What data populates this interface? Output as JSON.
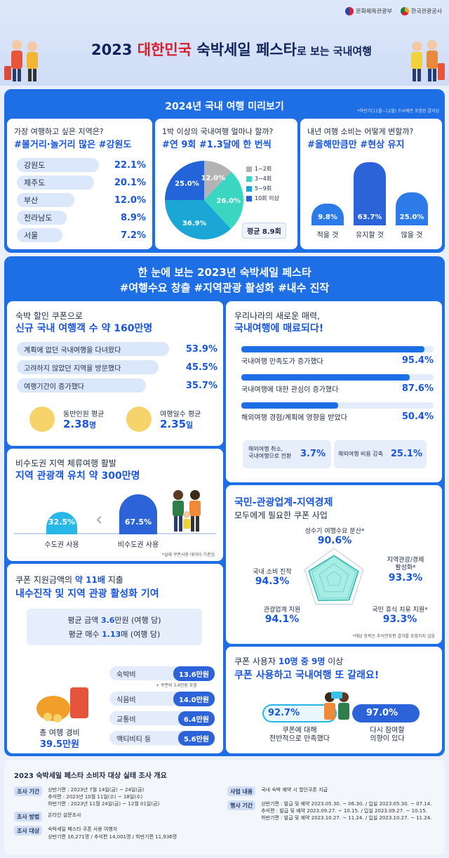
{
  "header": {
    "org1": "문화체육관광부",
    "org2": "한국관광공사",
    "title_pre": "2023 ",
    "title_red": "대한민국",
    "title_mid": " 숙박세일 페스타",
    "title_small": "로 보는 국내여행"
  },
  "preview": {
    "title": "2024년 국내 여행 미리보기",
    "note": "*하반기(11월~12월) 조사에만 포함된 결과임",
    "q1": {
      "question": "가장 여행하고 싶은 지역은?",
      "hashtag": "#볼거리·놀거리 많은 #강원도",
      "rows": [
        {
          "label": "강원도",
          "value": "22.1%"
        },
        {
          "label": "제주도",
          "value": "20.1%"
        },
        {
          "label": "부산",
          "value": "12.0%"
        },
        {
          "label": "전라남도",
          "value": "8.9%"
        },
        {
          "label": "서울",
          "value": "7.2%"
        }
      ]
    },
    "q2": {
      "question": "1박 이상의 국내여행 얼마나 할까?",
      "hashtag": "#연 9회 #1.3달에 한 번씩",
      "legend": [
        "1~2회",
        "3~4회",
        "5~9회",
        "10회 이상"
      ],
      "slice_labels": [
        "12.0%",
        "26.0%",
        "36.9%",
        "25.0%"
      ],
      "avg": "평균 8.9회"
    },
    "q3": {
      "question": "내년 여행 소비는 어떻게 변할까?",
      "hashtag": "#올해만큼만 #현상 유지",
      "bars": [
        {
          "label": "적을 것",
          "value": "9.8%"
        },
        {
          "label": "유지할 것",
          "value": "63.7%"
        },
        {
          "label": "많을 것",
          "value": "25.0%"
        }
      ]
    }
  },
  "chart_data": [
    {
      "type": "bar",
      "title": "가장 여행하고 싶은 지역은?",
      "categories": [
        "강원도",
        "제주도",
        "부산",
        "전라남도",
        "서울"
      ],
      "values": [
        22.1,
        20.1,
        12.0,
        8.9,
        7.2
      ]
    },
    {
      "type": "pie",
      "title": "1박 이상의 국내여행 얼마나 할까?",
      "categories": [
        "1~2회",
        "3~4회",
        "5~9회",
        "10회 이상"
      ],
      "values": [
        12.0,
        26.0,
        36.9,
        25.0
      ],
      "colors": [
        "#b3b3b3",
        "#3ad6c2",
        "#1aa7d6",
        "#2364d8"
      ]
    },
    {
      "type": "bar",
      "title": "내년 여행 소비는 어떻게 변할까?",
      "categories": [
        "적을 것",
        "유지할 것",
        "많을 것"
      ],
      "values": [
        9.8,
        63.7,
        25.0
      ]
    },
    {
      "type": "bar",
      "title": "비수도권 지역 체류여행 활발",
      "categories": [
        "수도권 사용",
        "비수도권 사용"
      ],
      "values": [
        32.5,
        67.5
      ]
    },
    {
      "type": "bar",
      "title": "우리나라의 새로운 매력, 국내여행에 매료되다!",
      "categories": [
        "국내여행 만족도가 증가했다",
        "국내여행에 대한 관심이 증가했다",
        "해외여행 경험/계획에 영향을 받았다"
      ],
      "values": [
        95.4,
        87.6,
        50.4
      ]
    }
  ],
  "summary": {
    "title_line1": "한 눈에 보는 2023년 숙박세일 페스타",
    "title_line2": "#여행수요 창출 #지역관광 활성화 #내수 진작"
  },
  "coupon": {
    "line1": "숙박 할인 쿠폰으로",
    "line2": "신규 국내 여행객 수 약 160만명",
    "rows": [
      {
        "label": "계획에 없던 국내여행을 다녀왔다",
        "value": "53.9%"
      },
      {
        "label": "고려하지 않았던 지역을 방문했다",
        "value": "45.5%"
      },
      {
        "label": "여행기간이 증가했다",
        "value": "35.7%"
      }
    ],
    "comp_label": "동반인원 평균",
    "comp_value": "2.38",
    "comp_unit": "명",
    "days_label": "여행일수 평균",
    "days_value": "2.35",
    "days_unit": "일"
  },
  "charm": {
    "line1": "우리나라의 새로운 매력,",
    "line2": "국내여행에 매료되다!",
    "rows": [
      {
        "label": "국내여행 만족도가 증가했다",
        "value": "95.4%",
        "pct": 95.4
      },
      {
        "label": "국내여행에 대한 관심이 증가했다",
        "value": "87.6%",
        "pct": 87.6
      },
      {
        "label": "해외여행 경험/계획에 영향을 받았다",
        "value": "50.4%",
        "pct": 50.4
      }
    ],
    "sub1_label": "해외여행 취소,\n국내여행으로 전환",
    "sub1_value": "3.7%",
    "sub2_label": "해외여행 비용 감축",
    "sub2_value": "25.1%"
  },
  "region": {
    "line1": "비수도권 지역 체류여행 활발",
    "line2": "지역 관광객 유치 약 300만명",
    "v1": "32.5%",
    "l1": "수도권 사용",
    "v2": "67.5%",
    "l2": "비수도권 사용",
    "note": "*실제 쿠폰사용 데이터 기준임"
  },
  "econ": {
    "line1": "국민-관광업계-지역경제",
    "line2": "모두에게 필요한 쿠폰 사업",
    "radar": [
      {
        "label": "성수기 여행수요 분산*",
        "value": "90.6%"
      },
      {
        "label": "지역관광/경제\n활성화*",
        "value": "93.3%"
      },
      {
        "label": "국민 휴식 치유 지원*",
        "value": "93.3%"
      },
      {
        "label": "관광업계 지원",
        "value": "94.1%"
      },
      {
        "label": "국내 소비 진작",
        "value": "94.3%"
      }
    ],
    "note": "*해당 항목은 추석연휴편 결과를 포함하지 않음"
  },
  "spend": {
    "line1_pre": "쿠폰 지원금액의 ",
    "line1_hl": "약 11배",
    "line1_post": " 지출",
    "line2": "내수진작 및 지역 관광 활성화 기여",
    "avg1_pre": "평균 금액 ",
    "avg1_val": "3.6",
    "avg1_post": "만원 (여행 당)",
    "avg2_pre": "평균 매수 ",
    "avg2_val": "1.13",
    "avg2_post": "매 (여행 당)",
    "total_label": "총 여행 경비",
    "total_value": "39.5만원",
    "items": [
      {
        "label": "숙박비",
        "value": "13.6만원"
      },
      {
        "label": "식음비",
        "value": "14.0만원"
      },
      {
        "label": "교통비",
        "value": "6.4만원"
      },
      {
        "label": "액티비티 등",
        "value": "5.6만원"
      }
    ],
    "lodging_note": "+ 쿠폰비 3.6만원 포함"
  },
  "users": {
    "line1_pre": "쿠폰 사용자 ",
    "line1_hl": "10명 중 9명",
    "line1_post": " 이상",
    "line2": "쿠폰 사용하고 국내여행 또 갈래요!",
    "v1": "92.7%",
    "l1": "쿠폰에 대해\n전반적으로 만족했다",
    "v2": "97.0%",
    "l2": "다시 참여할\n의향이 있다"
  },
  "survey": {
    "title": "2023 숙박세일 페스타 소비자 대상 실태 조사 개요",
    "rows": [
      {
        "tag": "조사 기간",
        "text": "상반기편 : 2023년 7월 14일(금) ~ 24일(금)\n추석편 : 2023년 10월 11일(수) ~ 18일(수)\n하반기편 : 2023년 11월 24일(금) ~ 12월 01일(금)"
      },
      {
        "tag": "조사 방법",
        "text": "온라인 설문조사"
      },
      {
        "tag": "조사 대상",
        "text": "숙박세일 페스타 쿠폰 사용 여행자\n상반기편 16,271명 / 추석편 14,001명 / 하반기편 11,936명"
      }
    ],
    "rows2": [
      {
        "tag": "사업 내용",
        "text": "국내 숙박 예약 시 할인쿠폰 지급"
      },
      {
        "tag": "행사 기간",
        "text": "상반기편 : 발급 및 예약 2023.05.30. ~ 06.30. / 입실 2023.05.30. ~ 07.14.\n추석편 : 발급 및 예약 2023.09.27. ~ 10.15. / 입실 2023.09.27. ~ 10.15.\n하반기편 : 발급 및 예약 2023.10.27. ~ 11.24. / 입실 2023.10.27. ~ 11.24."
      }
    ]
  }
}
